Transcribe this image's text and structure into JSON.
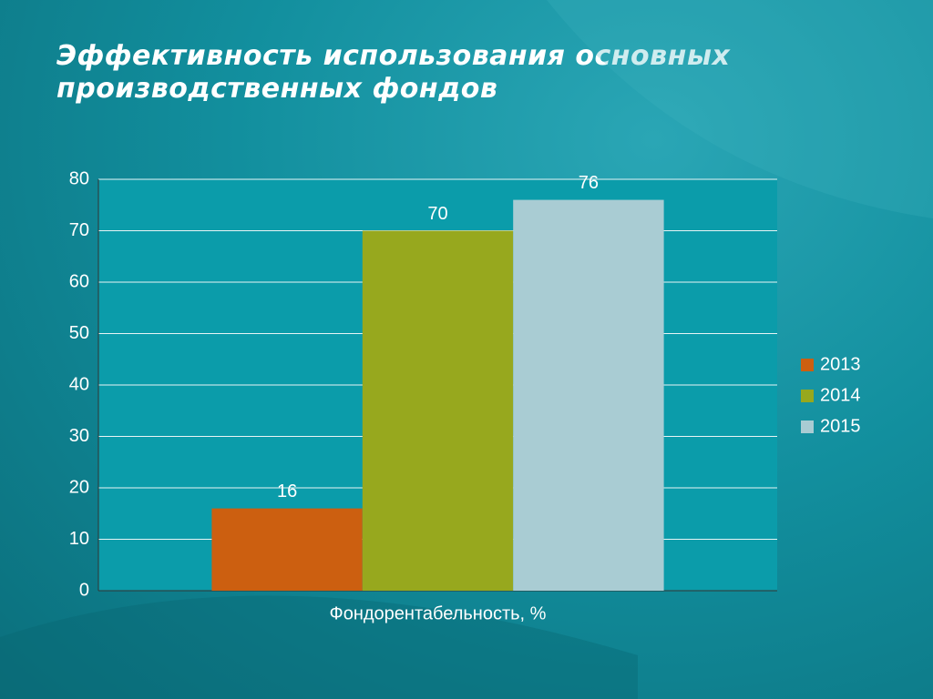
{
  "chart_data": {
    "type": "bar",
    "title": "Эффективность использования основных производственных фондов",
    "categories": [
      "Фондорентабельность, %"
    ],
    "series": [
      {
        "name": "2013",
        "color": "#cc5f10",
        "values": [
          16
        ]
      },
      {
        "name": "2014",
        "color": "#97a81e",
        "values": [
          70
        ]
      },
      {
        "name": "2015",
        "color": "#a9ccd3",
        "values": [
          76
        ]
      }
    ],
    "ylim": [
      0,
      80
    ],
    "yticks": [
      0,
      10,
      20,
      30,
      40,
      50,
      60,
      70,
      80
    ],
    "grid": true,
    "legend": "right"
  }
}
